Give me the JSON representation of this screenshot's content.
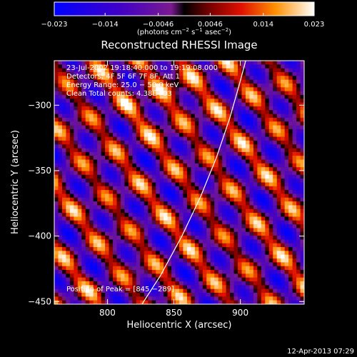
{
  "chart_data": {
    "type": "heatmap",
    "title": "Reconstructed RHESSI Image",
    "xlabel": "Heliocentric X (arcsec)",
    "ylabel": "Heliocentric Y (arcsec)",
    "xlim": [
      760,
      948
    ],
    "ylim": [
      -452,
      -266
    ],
    "x_ticks": [
      {
        "value": 800,
        "label": "800"
      },
      {
        "value": 850,
        "label": "850"
      },
      {
        "value": 900,
        "label": "900"
      }
    ],
    "y_ticks": [
      {
        "value": -300,
        "label": "−300"
      },
      {
        "value": -350,
        "label": "−350"
      },
      {
        "value": -400,
        "label": "−400"
      },
      {
        "value": -450,
        "label": "−450"
      }
    ],
    "colorbar": {
      "range": [
        -0.023,
        0.023
      ],
      "ticks": [
        {
          "value": -0.023,
          "label": "−0.023"
        },
        {
          "value": -0.014,
          "label": "−0.014"
        },
        {
          "value": -0.0046,
          "label": "−0.0046"
        },
        {
          "value": 0.0046,
          "label": "0.0046"
        },
        {
          "value": 0.014,
          "label": "0.014"
        },
        {
          "value": 0.023,
          "label": "0.023"
        }
      ],
      "unit_base": "(photons cm",
      "unit_exp1": "−2",
      "unit_mid": " s",
      "unit_exp2": "−1",
      "unit_end": " asec",
      "unit_exp3": "−2",
      "unit_close": ")"
    },
    "annotations": {
      "time": "23-Jul-2002 19:18:40.000 to 19:19:08.000",
      "detectors": "Detectors: 4F 5F 6F 7F 8F, Att 1",
      "energy": "Energy Range: 25.0 − 50.0 keV",
      "clean": "Clean     Total counts: 4.38E+03",
      "peak": "Position of Peak = [845,−289]"
    },
    "peak": {
      "x": 845,
      "y": -289
    },
    "limb": [
      [
        826,
        -452
      ],
      [
        840,
        -430
      ],
      [
        856,
        -400
      ],
      [
        870,
        -370
      ],
      [
        882,
        -340
      ],
      [
        892,
        -310
      ],
      [
        899,
        -285
      ],
      [
        904,
        -266
      ]
    ],
    "colors": {
      "background": "#000000",
      "text": "#ffffff",
      "limb": "#ffffff"
    }
  },
  "footer": {
    "timestamp": "12-Apr-2013 07:29"
  }
}
